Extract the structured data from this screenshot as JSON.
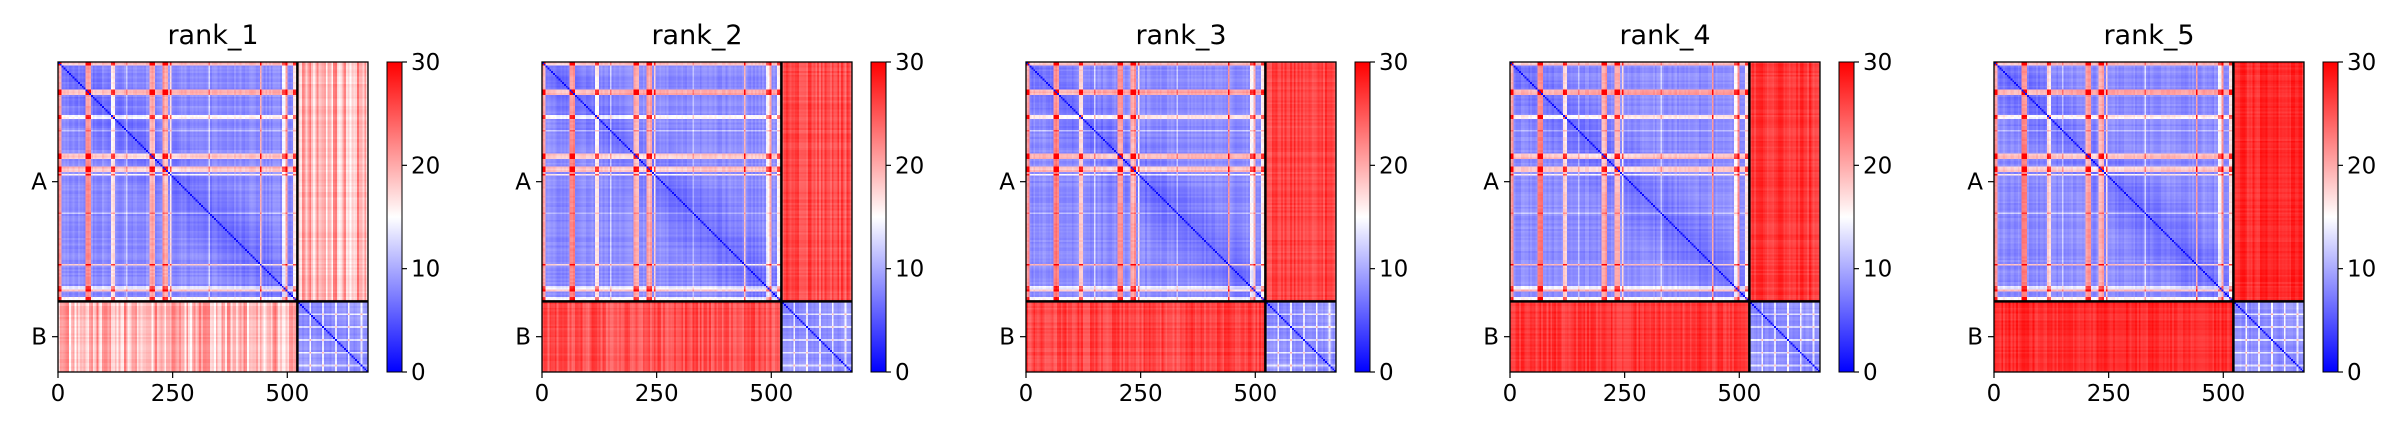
{
  "chart_data": [
    {
      "type": "heatmap",
      "title": "rank_1",
      "chains": [
        "A",
        "B"
      ],
      "chain_boundary": 522,
      "x_range": [
        0,
        676
      ],
      "y_range": [
        0,
        676
      ],
      "xticks": [
        0,
        250,
        500
      ],
      "colorbar": {
        "colormap": "bwr",
        "range": [
          0,
          30
        ],
        "ticks": [
          0,
          10,
          20,
          30
        ]
      },
      "inter_chain_level": 24
    },
    {
      "type": "heatmap",
      "title": "rank_2",
      "chains": [
        "A",
        "B"
      ],
      "chain_boundary": 522,
      "x_range": [
        0,
        676
      ],
      "y_range": [
        0,
        676
      ],
      "xticks": [
        0,
        250,
        500
      ],
      "colorbar": {
        "colormap": "bwr",
        "range": [
          0,
          30
        ],
        "ticks": [
          0,
          10,
          20,
          30
        ]
      },
      "inter_chain_level": 28
    },
    {
      "type": "heatmap",
      "title": "rank_3",
      "chains": [
        "A",
        "B"
      ],
      "chain_boundary": 522,
      "x_range": [
        0,
        676
      ],
      "y_range": [
        0,
        676
      ],
      "xticks": [
        0,
        250,
        500
      ],
      "colorbar": {
        "colormap": "bwr",
        "range": [
          0,
          30
        ],
        "ticks": [
          0,
          10,
          20,
          30
        ]
      },
      "inter_chain_level": 28.5
    },
    {
      "type": "heatmap",
      "title": "rank_4",
      "chains": [
        "A",
        "B"
      ],
      "chain_boundary": 522,
      "x_range": [
        0,
        676
      ],
      "y_range": [
        0,
        676
      ],
      "xticks": [
        0,
        250,
        500
      ],
      "colorbar": {
        "colormap": "bwr",
        "range": [
          0,
          30
        ],
        "ticks": [
          0,
          10,
          20,
          30
        ]
      },
      "inter_chain_level": 29
    },
    {
      "type": "heatmap",
      "title": "rank_5",
      "chains": [
        "A",
        "B"
      ],
      "chain_boundary": 522,
      "x_range": [
        0,
        676
      ],
      "y_range": [
        0,
        676
      ],
      "xticks": [
        0,
        250,
        500
      ],
      "colorbar": {
        "colormap": "bwr",
        "range": [
          0,
          30
        ],
        "ticks": [
          0,
          10,
          20,
          30
        ]
      },
      "inter_chain_level": 29.5
    }
  ]
}
